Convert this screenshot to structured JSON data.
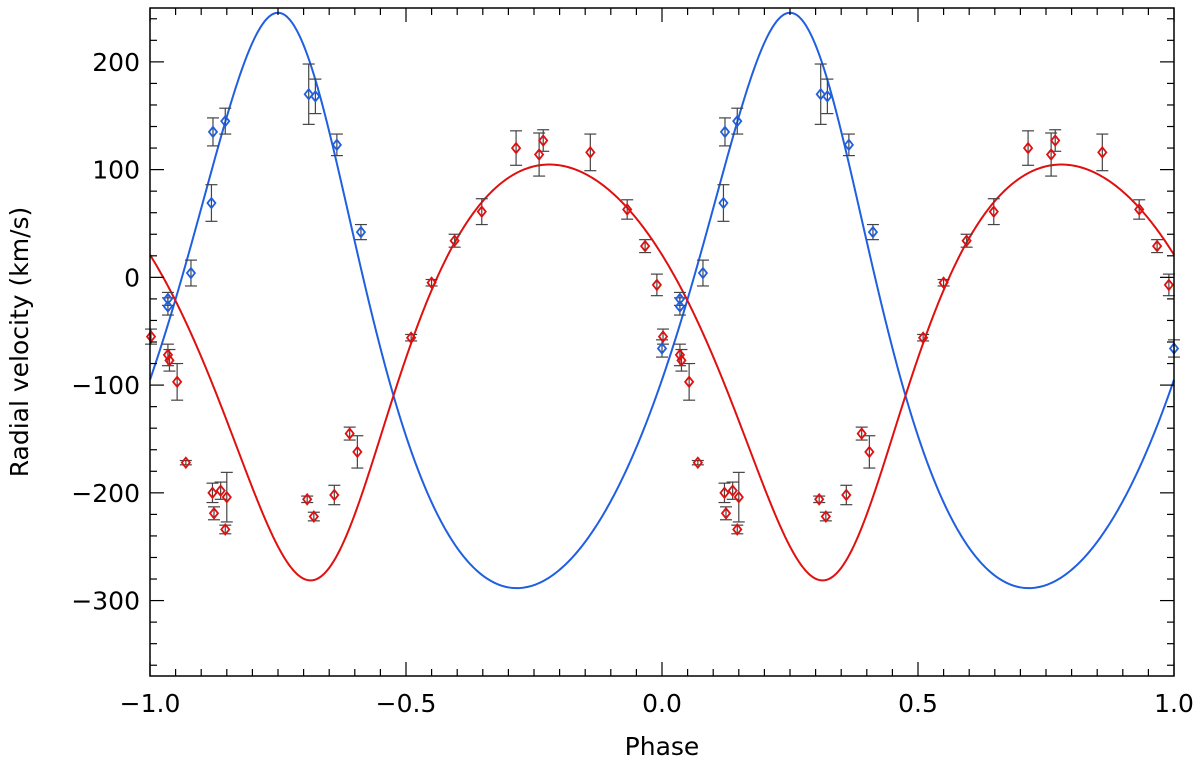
{
  "chart_data": {
    "type": "scatter",
    "xlabel": "Phase",
    "ylabel": "Radial velocity (km/s)",
    "xlim": [
      -1.0,
      1.0
    ],
    "ylim": [
      -370,
      250
    ],
    "x_ticks": [
      -1.0,
      -0.5,
      0.0,
      0.5,
      1.0
    ],
    "x_tick_labels": [
      "−1.0",
      "−0.5",
      "0.0",
      "0.5",
      "1.0"
    ],
    "y_ticks": [
      -300,
      -200,
      -100,
      0,
      100,
      200
    ],
    "y_tick_labels": [
      "−300",
      "−200",
      "−100",
      "0",
      "100",
      "200"
    ],
    "grid": false,
    "colors": {
      "blue": "#1f5fe0",
      "red": "#e01010",
      "errorbar": "#444444"
    },
    "series": [
      {
        "color": "#1f5fe0",
        "marker": "diamond",
        "points": [
          {
            "x": -0.965,
            "y": -20,
            "err": 6
          },
          {
            "x": -0.965,
            "y": -27,
            "err": 8
          },
          {
            "x": -0.92,
            "y": 4,
            "err": 12
          },
          {
            "x": -0.88,
            "y": 69,
            "err": 17
          },
          {
            "x": -0.877,
            "y": 135,
            "err": 13
          },
          {
            "x": -0.853,
            "y": 145,
            "err": 12
          },
          {
            "x": -0.69,
            "y": 170,
            "err": 28
          },
          {
            "x": -0.677,
            "y": 168,
            "err": 16
          },
          {
            "x": -0.635,
            "y": 123,
            "err": 10
          },
          {
            "x": -0.588,
            "y": 42,
            "err": 7
          },
          {
            "x": -0.0,
            "y": -66,
            "err": 8
          }
        ],
        "model": {
          "gamma": -73,
          "K": 267,
          "e": 0.2,
          "omega_deg": 15,
          "phase_peak": 0.25
        }
      },
      {
        "color": "#e01010",
        "marker": "diamond",
        "points": [
          {
            "x": -0.998,
            "y": -55,
            "err": 7
          },
          {
            "x": -0.965,
            "y": -72,
            "err": 10
          },
          {
            "x": -0.962,
            "y": -77,
            "err": 10
          },
          {
            "x": -0.947,
            "y": -97,
            "err": 17
          },
          {
            "x": -0.93,
            "y": -172,
            "err": 2
          },
          {
            "x": -0.878,
            "y": -200,
            "err": 9
          },
          {
            "x": -0.875,
            "y": -219,
            "err": 6
          },
          {
            "x": -0.862,
            "y": -198,
            "err": 8
          },
          {
            "x": -0.853,
            "y": -234,
            "err": 4
          },
          {
            "x": -0.85,
            "y": -204,
            "err": 23
          },
          {
            "x": -0.693,
            "y": -206,
            "err": 3
          },
          {
            "x": -0.68,
            "y": -222,
            "err": 4
          },
          {
            "x": -0.64,
            "y": -202,
            "err": 9
          },
          {
            "x": -0.61,
            "y": -145,
            "err": 6
          },
          {
            "x": -0.595,
            "y": -162,
            "err": 15
          },
          {
            "x": -0.49,
            "y": -56,
            "err": 3
          },
          {
            "x": -0.45,
            "y": -5,
            "err": 3
          },
          {
            "x": -0.405,
            "y": 34,
            "err": 6
          },
          {
            "x": -0.352,
            "y": 61,
            "err": 12
          },
          {
            "x": -0.285,
            "y": 120,
            "err": 16
          },
          {
            "x": -0.24,
            "y": 114,
            "err": 20
          },
          {
            "x": -0.232,
            "y": 127,
            "err": 10
          },
          {
            "x": -0.14,
            "y": 116,
            "err": 17
          },
          {
            "x": -0.068,
            "y": 63,
            "err": 9
          },
          {
            "x": -0.033,
            "y": 29,
            "err": 6
          },
          {
            "x": -0.01,
            "y": -7,
            "err": 10
          }
        ],
        "model": {
          "gamma": -51,
          "K": 193,
          "e": 0.2,
          "omega_deg": 195,
          "phase_peak": 0.78
        }
      }
    ],
    "repeat_period": 1.0
  }
}
